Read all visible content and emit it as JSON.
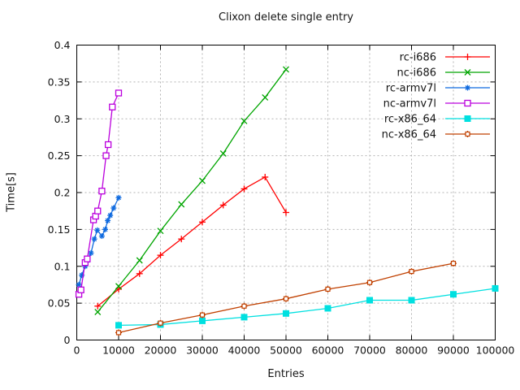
{
  "title": "Clixon delete single entry",
  "chart_data": {
    "type": "line",
    "title": "Clixon delete single entry",
    "xlabel": "Entries",
    "ylabel": "Time[s]",
    "xlim": [
      0,
      100000
    ],
    "ylim": [
      0,
      0.4
    ],
    "xticks": [
      0,
      10000,
      20000,
      30000,
      40000,
      50000,
      60000,
      70000,
      80000,
      90000,
      100000
    ],
    "xtick_labels": [
      "0",
      "10000",
      "20000",
      "30000",
      "40000",
      "50000",
      "60000",
      "70000",
      "80000",
      "90000",
      "100000"
    ],
    "yticks": [
      0,
      0.05,
      0.1,
      0.15,
      0.2,
      0.25,
      0.3,
      0.35,
      0.4
    ],
    "ytick_labels": [
      "0",
      "0.05",
      "0.1",
      "0.15",
      "0.2",
      "0.25",
      "0.3",
      "0.35",
      "0.4"
    ],
    "grid": true,
    "grid_color": "#b3b3b3",
    "axis_color": "#000000",
    "text_color": "#141414",
    "legend_position": "top-right-inside",
    "series": [
      {
        "name": "rc-i686",
        "color": "#ff0000",
        "marker": "plus",
        "x": [
          5000,
          10000,
          15000,
          20000,
          25000,
          30000,
          35000,
          40000,
          45000,
          50000
        ],
        "y": [
          0.046,
          0.069,
          0.09,
          0.115,
          0.137,
          0.16,
          0.183,
          0.205,
          0.221,
          0.173
        ]
      },
      {
        "name": "nc-i686",
        "color": "#00a500",
        "marker": "cross",
        "x": [
          5000,
          10000,
          15000,
          20000,
          25000,
          30000,
          35000,
          40000,
          45000,
          50000
        ],
        "y": [
          0.038,
          0.073,
          0.108,
          0.148,
          0.184,
          0.216,
          0.253,
          0.297,
          0.329,
          0.367
        ]
      },
      {
        "name": "rc-armv7l",
        "color": "#0f6adf",
        "marker": "asterisk",
        "x": [
          500,
          1200,
          2000,
          2600,
          3400,
          4200,
          4900,
          6000,
          6800,
          7400,
          8000,
          8800,
          10000
        ],
        "y": [
          0.075,
          0.088,
          0.1,
          0.108,
          0.118,
          0.137,
          0.149,
          0.141,
          0.15,
          0.162,
          0.169,
          0.179,
          0.193
        ]
      },
      {
        "name": "nc-armv7l",
        "color": "#bb00dd",
        "marker": "open-square",
        "x": [
          500,
          1000,
          2000,
          2500,
          4000,
          4500,
          5000,
          6000,
          7000,
          7500,
          8500,
          10000
        ],
        "y": [
          0.062,
          0.068,
          0.105,
          0.11,
          0.163,
          0.168,
          0.175,
          0.202,
          0.25,
          0.265,
          0.316,
          0.335
        ]
      },
      {
        "name": "rc-x86_64",
        "color": "#00e0e0",
        "marker": "filled-square",
        "x": [
          10000,
          20000,
          30000,
          40000,
          50000,
          60000,
          70000,
          80000,
          90000,
          100000
        ],
        "y": [
          0.02,
          0.021,
          0.026,
          0.031,
          0.036,
          0.043,
          0.054,
          0.054,
          0.062,
          0.07
        ]
      },
      {
        "name": "nc-x86_64",
        "color": "#c04000",
        "marker": "boxed-plus",
        "x": [
          10000,
          20000,
          30000,
          40000,
          50000,
          60000,
          70000,
          80000,
          90000
        ],
        "y": [
          0.01,
          0.023,
          0.034,
          0.046,
          0.056,
          0.069,
          0.078,
          0.093,
          0.104
        ]
      }
    ]
  }
}
